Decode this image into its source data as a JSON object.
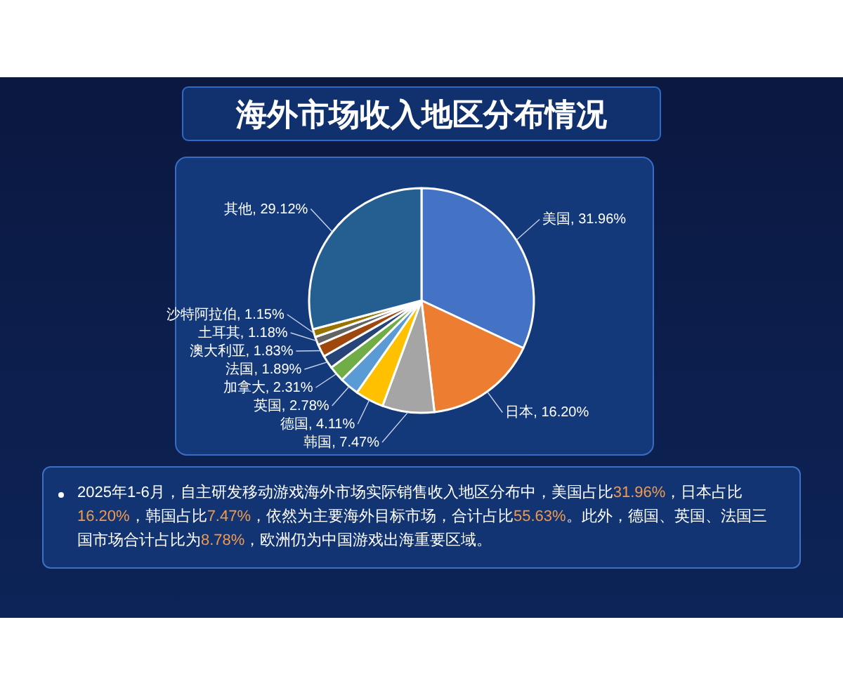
{
  "chart_data": {
    "type": "pie",
    "title": "海外市场收入地区分布情况",
    "categories": [
      "美国, 31.96%",
      "日本, 16.20%",
      "韩国, 7.47%",
      "德国, 4.11%",
      "英国, 2.78%",
      "加拿大, 2.31%",
      "法国, 1.89%",
      "澳大利亚, 1.83%",
      "土耳其, 1.18%",
      "沙特阿拉伯, 1.15%",
      "其他, 29.12%"
    ],
    "values": [
      31.96,
      16.2,
      7.47,
      4.11,
      2.78,
      2.31,
      1.89,
      1.83,
      1.18,
      1.15,
      29.12
    ],
    "colors": [
      "#4472c4",
      "#ed7d31",
      "#a5a5a5",
      "#ffc000",
      "#5b9bd5",
      "#70ad47",
      "#264478",
      "#9e480e",
      "#636363",
      "#997300",
      "#255e91"
    ],
    "annotations": [
      "2025年1-6月，自主研发移动游戏海外市场实际销售收入地区分布中，美国占比31.96%，日本占比16.20%，韩国占比7.47%，依然为主要海外目标市场，合计占比55.63%。此外，德国、英国、法国三国市场合计占比为8.78%，欧洲仍为中国游戏出海重要区域。"
    ]
  }
}
